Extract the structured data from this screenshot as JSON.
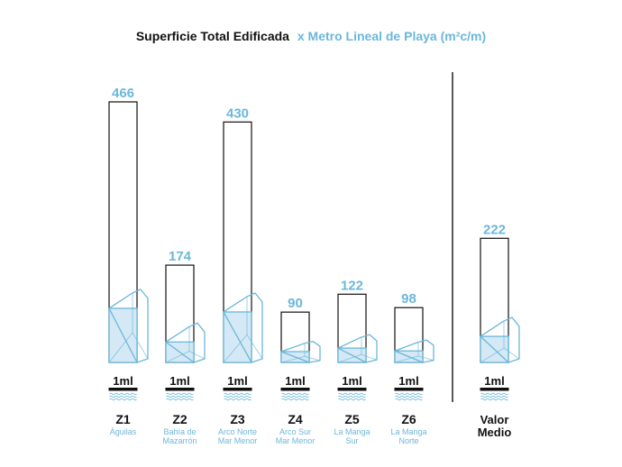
{
  "chart_data": {
    "type": "bar",
    "title": "Superficie Total Edificada",
    "title_accent": "x Metro Lineal de Playa (m²c/m)",
    "unit_label": "1ml",
    "categories": [
      "Z1",
      "Z2",
      "Z3",
      "Z4",
      "Z5",
      "Z6"
    ],
    "subtitles": [
      [
        "Águilas"
      ],
      [
        "Bahía de",
        "Mazarrón"
      ],
      [
        "Arco Norte",
        "Mar Menor"
      ],
      [
        "Arco Sur",
        "Mar Menor"
      ],
      [
        "La Manga",
        "Sur"
      ],
      [
        "La Manga",
        "Norte"
      ]
    ],
    "values": [
      466,
      174,
      430,
      90,
      122,
      98
    ],
    "average": {
      "label_lines": [
        "Valor",
        "Medio"
      ],
      "value": 222
    },
    "ylim": [
      0,
      466
    ],
    "grid": false,
    "legend": "none",
    "colors": {
      "accent": "#6bb7da",
      "fill": "#d4e9f5",
      "outline": "#111111"
    }
  }
}
